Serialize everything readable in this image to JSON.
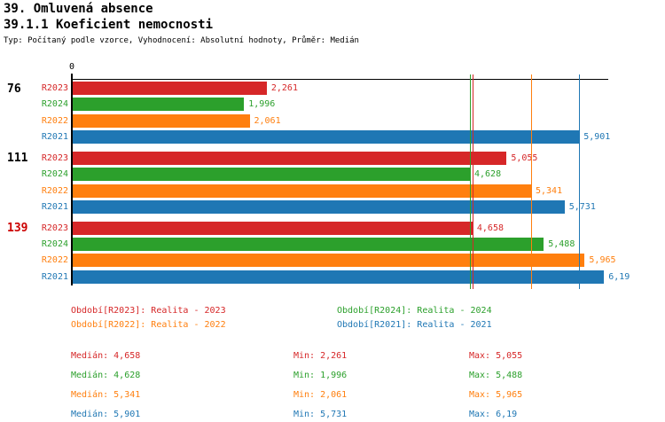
{
  "header": {
    "title": "39. Omluvená absence",
    "subtitle": "39.1.1 Koeficient nemocnosti",
    "meta": "Typ: Počítaný podle vzorce, Vyhodnocení: Absolutní hodnoty, Průměr: Medián"
  },
  "colors": {
    "R2023": "#d62728",
    "R2024": "#2ca02c",
    "R2022": "#ff7f0e",
    "R2021": "#1f77b4",
    "axis": "#000000",
    "group_highlight": "#cc0000",
    "group_normal": "#000000"
  },
  "chart_data": {
    "type": "bar",
    "orientation": "horizontal",
    "x_axis": {
      "origin_label": "0",
      "xlim": [
        0,
        6.25
      ],
      "position": "top"
    },
    "series_order": [
      "R2023",
      "R2024",
      "R2022",
      "R2021"
    ],
    "groups": [
      {
        "label": "76",
        "highlighted": false,
        "bars": [
          {
            "series": "R2023",
            "value": 2.261,
            "display": "2,261"
          },
          {
            "series": "R2024",
            "value": 1.996,
            "display": "1,996"
          },
          {
            "series": "R2022",
            "value": 2.061,
            "display": "2,061"
          },
          {
            "series": "R2021",
            "value": 5.901,
            "display": "5,901"
          }
        ]
      },
      {
        "label": "111",
        "highlighted": false,
        "bars": [
          {
            "series": "R2023",
            "value": 5.055,
            "display": "5,055"
          },
          {
            "series": "R2024",
            "value": 4.628,
            "display": "4,628"
          },
          {
            "series": "R2022",
            "value": 5.341,
            "display": "5,341"
          },
          {
            "series": "R2021",
            "value": 5.731,
            "display": "5,731"
          }
        ]
      },
      {
        "label": "139",
        "highlighted": true,
        "bars": [
          {
            "series": "R2023",
            "value": 4.658,
            "display": "4,658"
          },
          {
            "series": "R2024",
            "value": 5.488,
            "display": "5,488"
          },
          {
            "series": "R2022",
            "value": 5.965,
            "display": "5,965"
          },
          {
            "series": "R2021",
            "value": 6.19,
            "display": "6,19"
          }
        ]
      }
    ],
    "medians": {
      "R2024": 4.628,
      "R2023": 4.658,
      "R2022": 5.341,
      "R2021": 5.901
    }
  },
  "legend": [
    {
      "series": "R2023",
      "label": "Období[R2023]: Realita - 2023"
    },
    {
      "series": "R2024",
      "label": "Období[R2024]: Realita - 2024"
    },
    {
      "series": "R2022",
      "label": "Období[R2022]: Realita - 2022"
    },
    {
      "series": "R2021",
      "label": "Období[R2021]: Realita - 2021"
    }
  ],
  "stats": {
    "columns": {
      "median": "Medián",
      "min": "Min",
      "max": "Max"
    },
    "rows": [
      {
        "series": "R2023",
        "median": "4,658",
        "min": "2,261",
        "max": "5,055"
      },
      {
        "series": "R2024",
        "median": "4,628",
        "min": "1,996",
        "max": "5,488"
      },
      {
        "series": "R2022",
        "median": "5,341",
        "min": "2,061",
        "max": "5,965"
      },
      {
        "series": "R2021",
        "median": "5,901",
        "min": "5,731",
        "max": "6,19"
      }
    ]
  }
}
